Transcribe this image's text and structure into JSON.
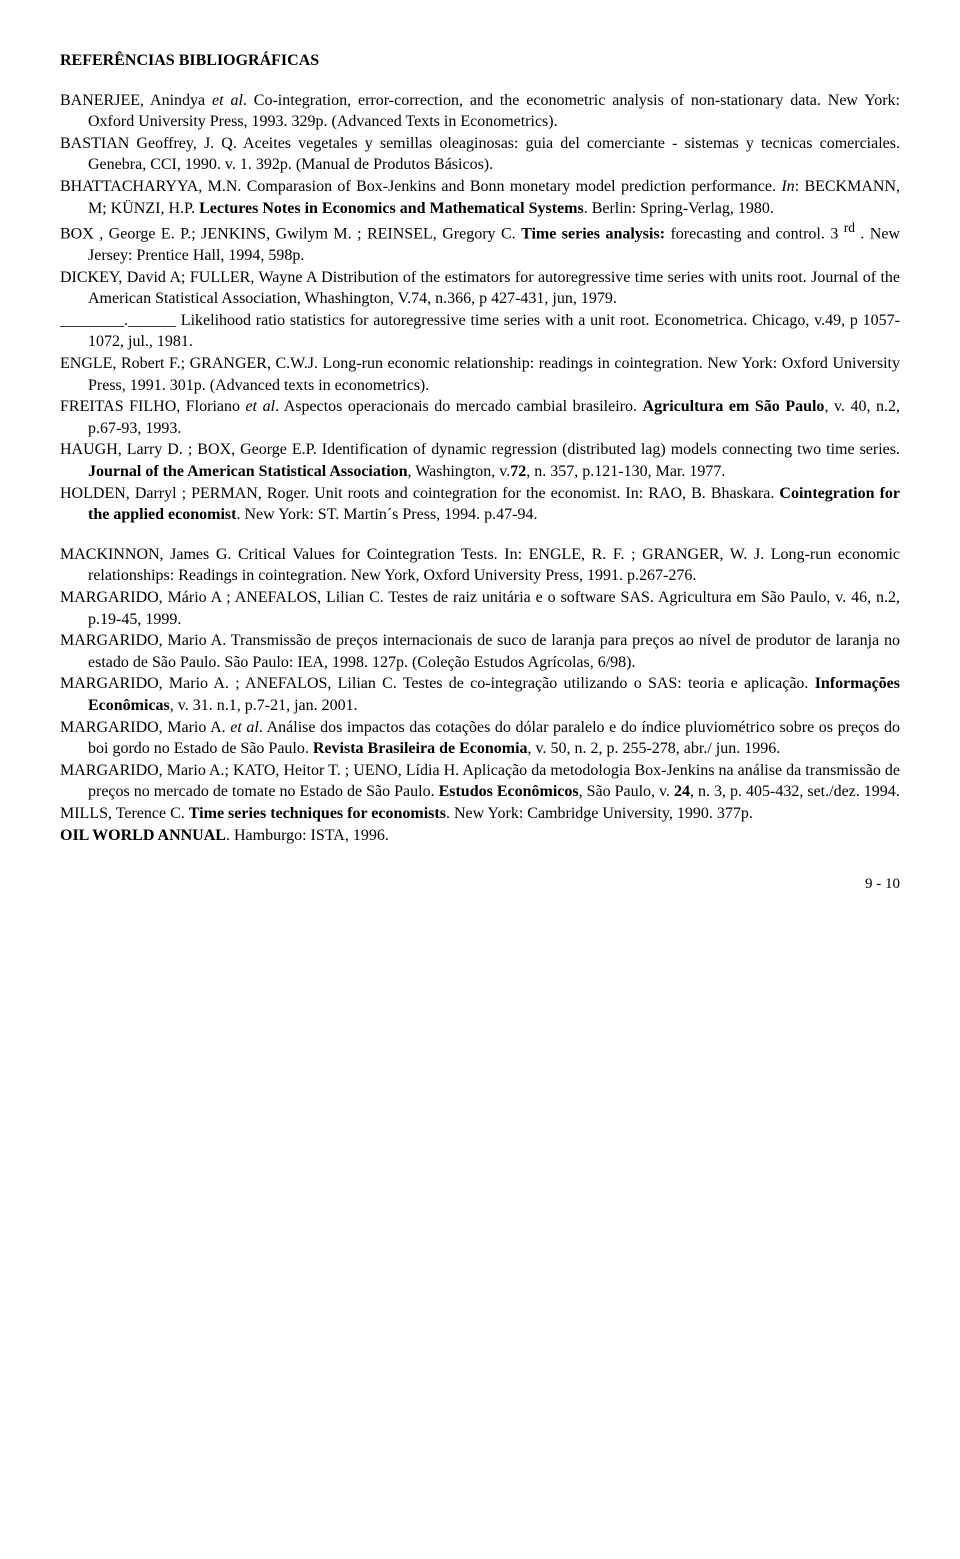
{
  "heading": "REFERÊNCIAS BIBLIOGRÁFICAS",
  "refs": [
    {
      "html": "BANERJEE, Anindya <i>et al</i>.   Co-integration, error-correction, and the econometric analysis of non-stationary data.   New York: Oxford University Press, 1993.   329p. (Advanced Texts in Econometrics)."
    },
    {
      "html": "BASTIAN Geoffrey, J. Q. Aceites vegetales y semillas oleaginosas: guia del comerciante - sistemas y tecnicas comerciales.  Genebra, CCI, 1990. v. 1.  392p. (Manual de Produtos Básicos)."
    },
    {
      "html": "BHATTACHARYYA, M.N.  Comparasion of Box-Jenkins and Bonn monetary model prediction performance.  <i>In</i>: BECKMANN, M; KÜNZI, H.P.   <b>Lectures Notes in Economics and Mathematical Systems</b>. Berlin: Spring-Verlag, 1980."
    },
    {
      "html": "BOX , George E. P.; JENKINS, Gwilym M. ; REINSEL, Gregory C. <b>Time series analysis:</b> forecasting and control. 3 <sup>rd</sup> . New Jersey: Prentice Hall, 1994, 598p."
    },
    {
      "html": "DICKEY, David A; FULLER, Wayne A Distribution of the estimators for autoregressive time series with units root.  Journal of the American Statistical Association, Whashington, V.74, n.366, p 427-431, jun, 1979."
    },
    {
      "html": "________.______ Likelihood ratio statistics for autoregressive time series with a unit root. Econometrica. Chicago, v.49, p 1057-1072, jul., 1981."
    },
    {
      "html": "ENGLE, Robert F.; GRANGER, C.W.J.   Long-run economic relationship: readings in cointegration.  New York: Oxford University Press, 1991.  301p. (Advanced texts in econometrics)."
    },
    {
      "html": "FREITAS FILHO, Floriano <i>et al</i>.   Aspectos operacionais do mercado cambial brasileiro. <b>Agricultura em São Paulo</b>, v. 40, n.2, p.67-93, 1993."
    },
    {
      "html": "HAUGH, Larry D. ; BOX, George E.P. Identification of dynamic regression (distributed lag) models connecting two time series. <b>Journal of the American Statistical Association</b>, Washington, v.<b>72</b>, n. 357, p.121-130, Mar. 1977."
    },
    {
      "html": "HOLDEN, Darryl ; PERMAN, Roger.   Unit roots and cointegration for the economist. In: RAO, B. Bhaskara.  <b>Cointegration for the applied economist</b>.  New York: ST. Martin´s Press, 1994. p.47-94."
    },
    {
      "gap": true
    },
    {
      "html": "MACKINNON, James G.  Critical Values for Cointegration Tests.  In: ENGLE, R. F. ; GRANGER, W. J. Long-run economic relationships: Readings in cointegration. New York, Oxford University Press, 1991. p.267-276."
    },
    {
      "html": "MARGARIDO, Mário A ; ANEFALOS, Lilian C. Testes de raiz unitária e o software SAS. Agricultura em São Paulo, v. 46, n.2, p.19-45, 1999."
    },
    {
      "html": "MARGARIDO, Mario A.   Transmissão de preços internacionais de suco de laranja para preços ao nível de produtor de laranja no estado de São Paulo.  São Paulo: IEA, 1998. 127p. (Coleção Estudos Agrícolas, 6/98)."
    },
    {
      "html": "MARGARIDO, Mario A. ; ANEFALOS, Lilian C.  Testes de co-integração utilizando o SAS: teoria e aplicação. <b>Informações Econômicas</b>, v. 31. n.1, p.7-21, jan. 2001."
    },
    {
      "html": "MARGARIDO, Mario A. <i>et al</i>.   Análise dos impactos das cotações do dólar paralelo e do índice pluviométrico sobre os preços do boi gordo no Estado de São Paulo.   <b>Revista Brasileira de Economia</b>, v. 50, n. 2, p. 255-278, abr./ jun. 1996."
    },
    {
      "html": "MARGARIDO, Mario A.; KATO, Heitor T. ; UENO, Lídia H.   Aplicação da metodologia Box-Jenkins na análise da transmissão de preços no mercado de tomate no Estado de São Paulo.  <b>Estudos Econômicos</b>, São Paulo, v. <b>24</b>, n. 3, p. 405-432, set./dez. 1994."
    },
    {
      "html": "MILLS, Terence C.   <b>Time series techniques for economists</b>.   New York: Cambridge University, 1990. 377p."
    },
    {
      "html": "<b>OIL WORLD ANNUAL</b>. Hamburgo: ISTA, 1996."
    }
  ],
  "pageNumber": "9 - 10"
}
